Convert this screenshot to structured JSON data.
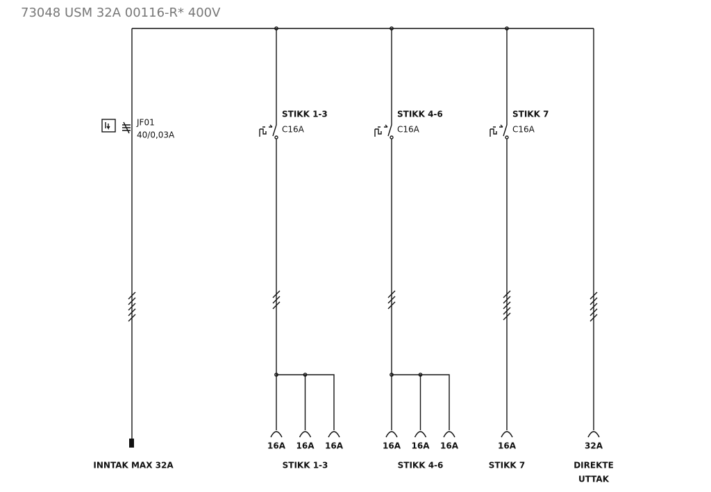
{
  "header": {
    "title": "73048 USM 32A 00116-R* 400V"
  },
  "feeder": {
    "device": "JF01",
    "rating": "40/0,03A",
    "label": "INNTAK MAX 32A"
  },
  "circuits": [
    {
      "name": "STIKK 1-3",
      "breaker": "C16A",
      "outlets": [
        "16A",
        "16A",
        "16A"
      ],
      "label": "STIKK 1-3"
    },
    {
      "name": "STIKK 4-6",
      "breaker": "C16A",
      "outlets": [
        "16A",
        "16A",
        "16A"
      ],
      "label": "STIKK 4-6"
    },
    {
      "name": "STIKK 7",
      "breaker": "C16A",
      "outlets": [
        "16A"
      ],
      "label": "STIKK 7"
    }
  ],
  "direct": {
    "outlet": "32A",
    "label": [
      "DIREKTE",
      "UTTAK"
    ]
  }
}
